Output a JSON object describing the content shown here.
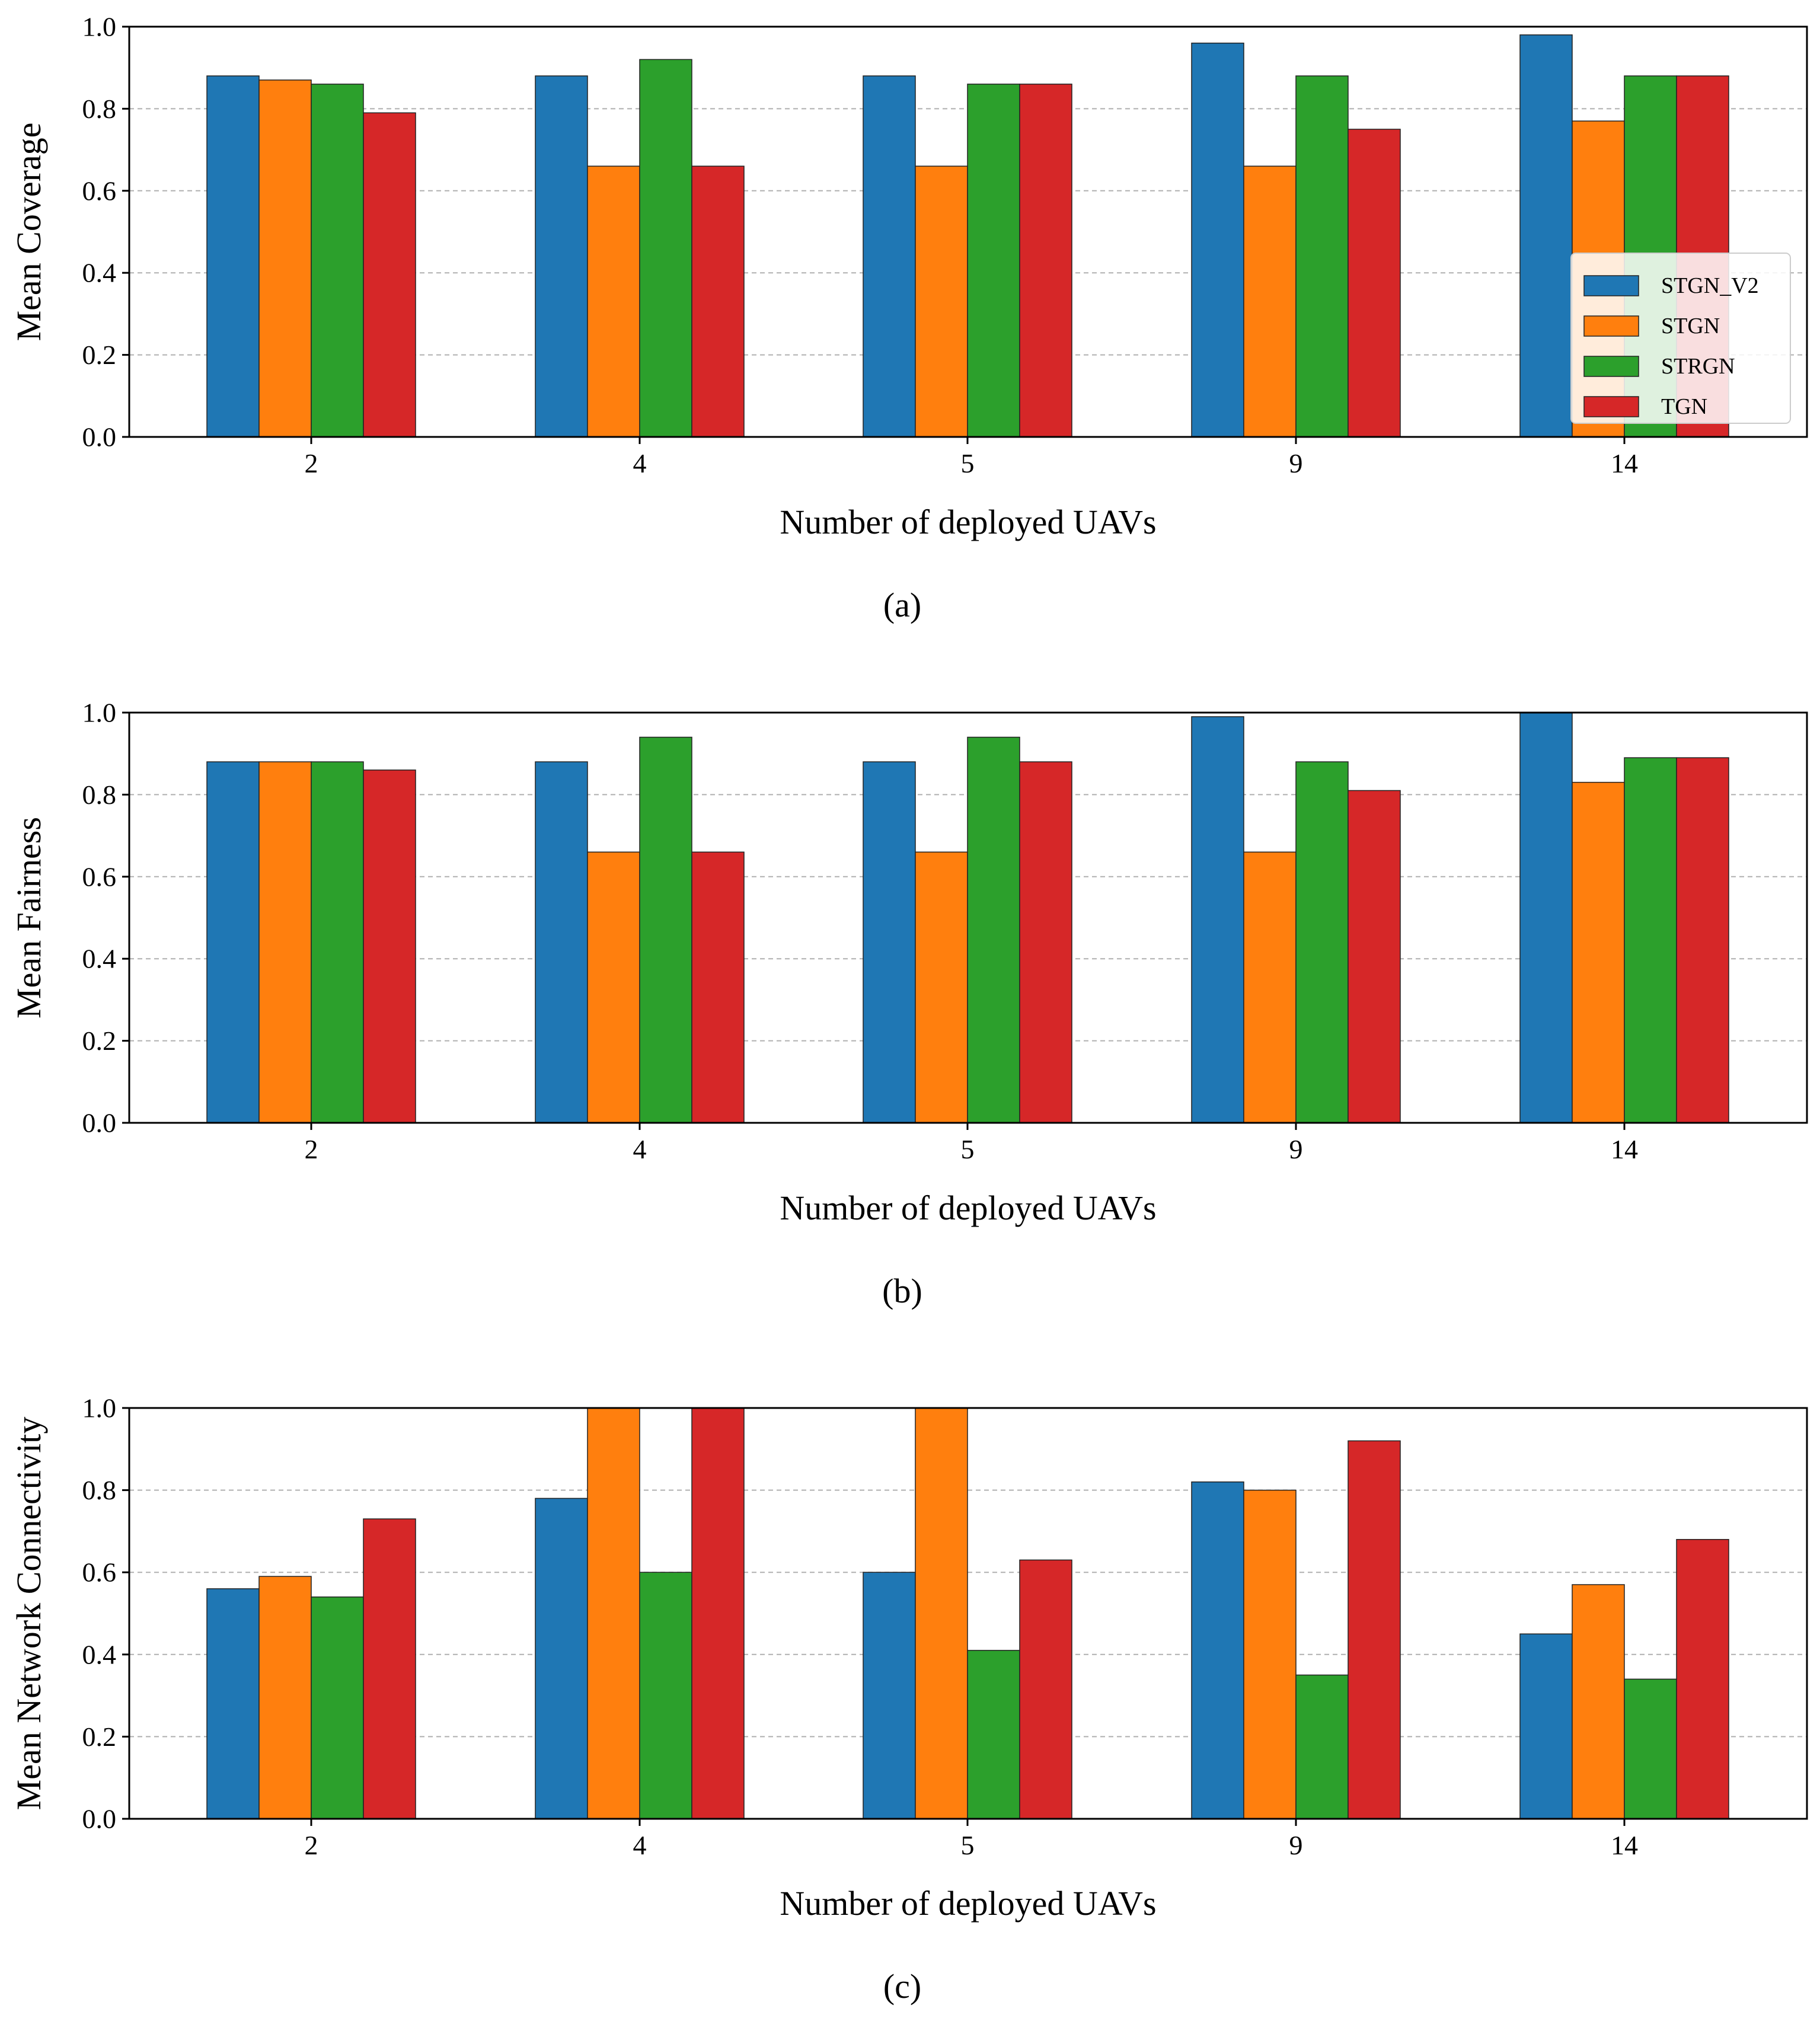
{
  "figure": {
    "legend": {
      "placement": "lower right of panel (a)",
      "entries": [
        "STGN_V2",
        "STGN",
        "STRGN",
        "TGN"
      ]
    },
    "colors": {
      "STGN_V2": "#1f77b4",
      "STGN": "#ff7f0e",
      "STRGN": "#2ca02c",
      "TGN": "#d62728",
      "grid": "#b0b0b0",
      "axis": "#000000"
    }
  },
  "chart_data": [
    {
      "type": "bar",
      "caption": "(a)",
      "categories": [
        "2",
        "4",
        "5",
        "9",
        "14"
      ],
      "xlabel": "Number of deployed UAVs",
      "ylabel": "Mean Coverage",
      "ylim": [
        0,
        1
      ],
      "yticks": [
        "0.0",
        "0.2",
        "0.4",
        "0.6",
        "0.8",
        "1.0"
      ],
      "grid": "horizontal dashed",
      "legend": true,
      "series": [
        {
          "name": "STGN_V2",
          "values": [
            0.88,
            0.88,
            0.88,
            0.96,
            0.98
          ]
        },
        {
          "name": "STGN",
          "values": [
            0.87,
            0.66,
            0.66,
            0.66,
            0.77
          ]
        },
        {
          "name": "STRGN",
          "values": [
            0.86,
            0.92,
            0.86,
            0.88,
            0.88
          ]
        },
        {
          "name": "TGN",
          "values": [
            0.79,
            0.66,
            0.86,
            0.75,
            0.88
          ]
        }
      ]
    },
    {
      "type": "bar",
      "caption": "(b)",
      "categories": [
        "2",
        "4",
        "5",
        "9",
        "14"
      ],
      "xlabel": "Number of deployed UAVs",
      "ylabel": "Mean Fairness",
      "ylim": [
        0,
        1
      ],
      "yticks": [
        "0.0",
        "0.2",
        "0.4",
        "0.6",
        "0.8",
        "1.0"
      ],
      "grid": "horizontal dashed",
      "legend": false,
      "series": [
        {
          "name": "STGN_V2",
          "values": [
            0.88,
            0.88,
            0.88,
            0.99,
            1.0
          ]
        },
        {
          "name": "STGN",
          "values": [
            0.88,
            0.66,
            0.66,
            0.66,
            0.83
          ]
        },
        {
          "name": "STRGN",
          "values": [
            0.88,
            0.94,
            0.94,
            0.88,
            0.89
          ]
        },
        {
          "name": "TGN",
          "values": [
            0.86,
            0.66,
            0.88,
            0.81,
            0.89
          ]
        }
      ]
    },
    {
      "type": "bar",
      "caption": "(c)",
      "categories": [
        "2",
        "4",
        "5",
        "9",
        "14"
      ],
      "xlabel": "Number of deployed UAVs",
      "ylabel": "Mean Network Connectivity",
      "ylim": [
        0,
        1
      ],
      "yticks": [
        "0.0",
        "0.2",
        "0.4",
        "0.6",
        "0.8",
        "1.0"
      ],
      "grid": "horizontal dashed",
      "legend": false,
      "series": [
        {
          "name": "STGN_V2",
          "values": [
            0.56,
            0.78,
            0.6,
            0.82,
            0.45
          ]
        },
        {
          "name": "STGN",
          "values": [
            0.59,
            1.0,
            1.0,
            0.8,
            0.57
          ]
        },
        {
          "name": "STRGN",
          "values": [
            0.54,
            0.6,
            0.41,
            0.35,
            0.34
          ]
        },
        {
          "name": "TGN",
          "values": [
            0.73,
            1.0,
            0.63,
            0.92,
            0.68
          ]
        }
      ]
    }
  ]
}
